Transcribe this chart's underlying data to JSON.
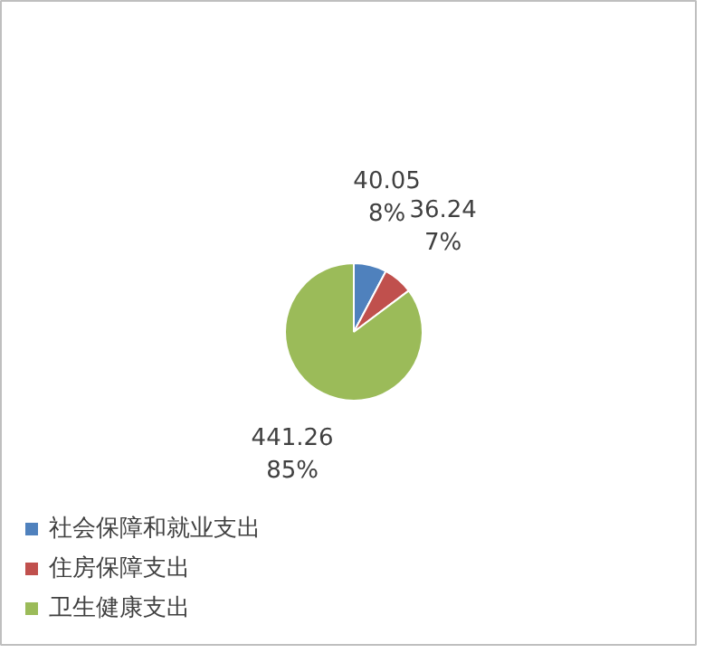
{
  "chart_data": {
    "type": "pie",
    "categories": [
      "社会保障和就业支出",
      "住房保障支出",
      "卫生健康支出"
    ],
    "values": [
      40.05,
      36.24,
      441.26
    ],
    "colors": [
      "#4f81bd",
      "#c0504d",
      "#9bbb59"
    ],
    "value_labels": [
      "40.05\n8%",
      "36.24\n7%",
      "441.26\n85%"
    ],
    "legend": "bottom left"
  }
}
